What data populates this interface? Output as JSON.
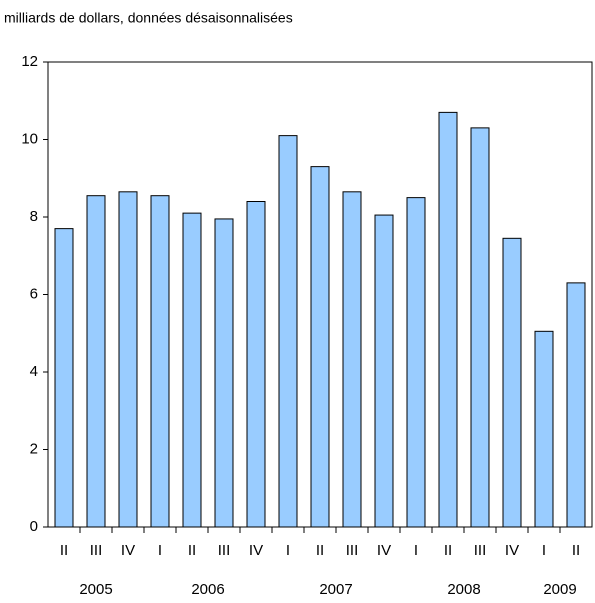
{
  "chart_data": {
    "type": "bar",
    "title": "milliards de dollars, données désaisonnalisées",
    "groups": [
      {
        "label": "2005",
        "categories": [
          "II",
          "III",
          "IV"
        ]
      },
      {
        "label": "2006",
        "categories": [
          "I",
          "II",
          "III",
          "IV"
        ]
      },
      {
        "label": "2007",
        "categories": [
          "I",
          "II",
          "III",
          "IV"
        ]
      },
      {
        "label": "2008",
        "categories": [
          "I",
          "II",
          "III",
          "IV"
        ]
      },
      {
        "label": "2009",
        "categories": [
          "I",
          "II"
        ]
      }
    ],
    "values": [
      7.7,
      8.55,
      8.65,
      8.55,
      8.1,
      7.95,
      8.4,
      10.1,
      9.3,
      8.65,
      8.05,
      8.5,
      10.7,
      10.3,
      7.45,
      5.05,
      6.3
    ],
    "color": "#99ccff",
    "ylim": [
      0,
      12
    ],
    "yticks": [
      0,
      2,
      4,
      6,
      8,
      10,
      12
    ],
    "grid": false
  }
}
